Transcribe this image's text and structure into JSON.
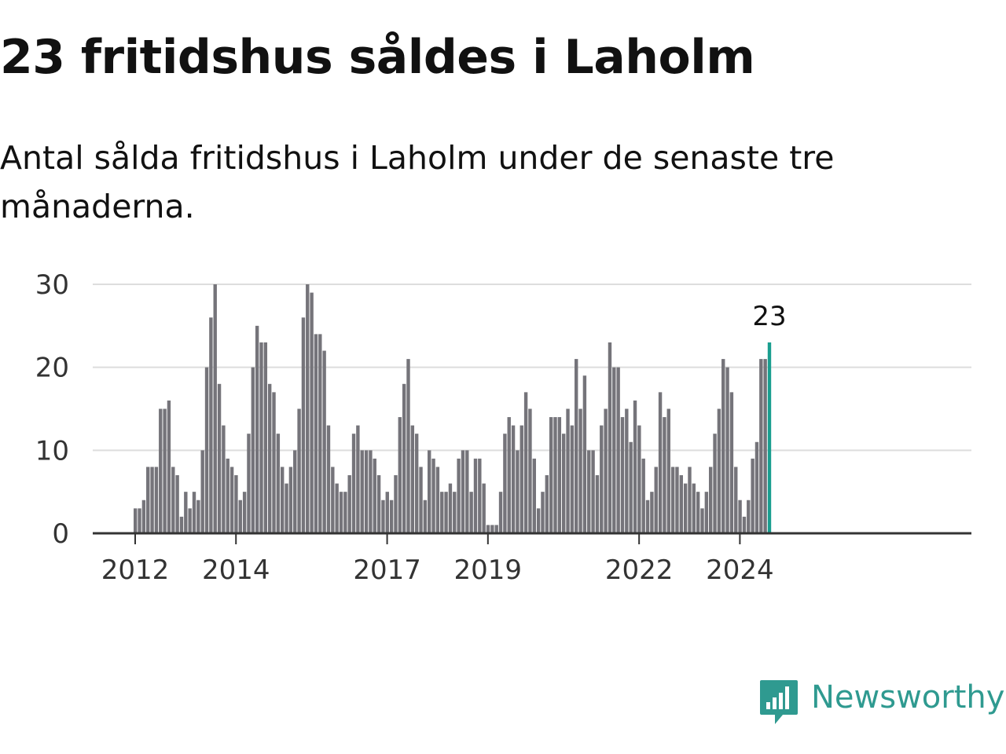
{
  "header": {
    "title": "23 fritidshus såldes i Laholm",
    "subtitle": "Antal sålda fritidshus i Laholm under de senaste tre månaderna."
  },
  "brand": {
    "name": "Newsworthy",
    "icon": "newsworthy-logo-icon",
    "color": "#2f9a90"
  },
  "colors": {
    "bar": "#75747a",
    "highlight": "#1a9e8f",
    "grid": "#dddddd",
    "axis": "#333333"
  },
  "chart_data": {
    "type": "bar",
    "start": "2012-01",
    "values": [
      3,
      3,
      4,
      8,
      8,
      8,
      15,
      15,
      16,
      8,
      7,
      2,
      5,
      3,
      5,
      4,
      10,
      20,
      26,
      30,
      18,
      13,
      9,
      8,
      7,
      4,
      5,
      12,
      20,
      25,
      23,
      23,
      18,
      17,
      12,
      8,
      6,
      8,
      10,
      15,
      26,
      30,
      29,
      24,
      24,
      22,
      13,
      8,
      6,
      5,
      5,
      7,
      12,
      13,
      10,
      10,
      10,
      9,
      7,
      4,
      5,
      4,
      7,
      14,
      18,
      21,
      13,
      12,
      8,
      4,
      10,
      9,
      8,
      5,
      5,
      6,
      5,
      9,
      10,
      10,
      5,
      9,
      9,
      6,
      1,
      1,
      1,
      5,
      12,
      14,
      13,
      10,
      13,
      17,
      15,
      9,
      3,
      5,
      7,
      14,
      14,
      14,
      12,
      15,
      13,
      21,
      15,
      19,
      10,
      10,
      7,
      13,
      15,
      23,
      20,
      20,
      14,
      15,
      11,
      16,
      13,
      9,
      4,
      5,
      8,
      17,
      14,
      15,
      8,
      8,
      7,
      6,
      8,
      6,
      5,
      3,
      5,
      8,
      12,
      15,
      21,
      20,
      17,
      8,
      4,
      2,
      4,
      9,
      11,
      21,
      21,
      23
    ],
    "highlight_last": true,
    "highlight_label": "23",
    "x_ticks": [
      "2012",
      "2014",
      "2017",
      "2019",
      "2022",
      "2024"
    ],
    "y_ticks": [
      "0",
      "10",
      "20",
      "30"
    ],
    "ylim": [
      0,
      30
    ],
    "grid": true
  }
}
